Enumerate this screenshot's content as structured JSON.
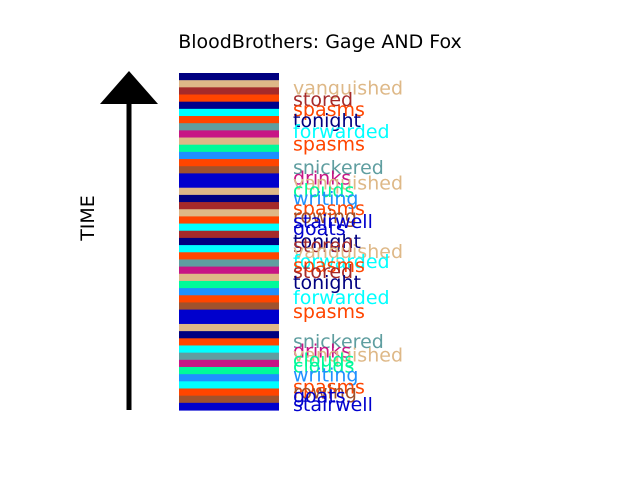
{
  "chart_data": {
    "type": "bar",
    "title": "BloodBrothers: Gage AND Fox",
    "ylabel": "TIME",
    "xlabel": "",
    "stripe_colors": [
      "#000080",
      "#deb887",
      "#a52a2a",
      "#ff4500",
      "#00008b",
      "#00ffff",
      "#ff4500",
      "#5f9ea0",
      "#c71585",
      "#deb887",
      "#00fa9a",
      "#1e90ff",
      "#ff4500",
      "#a0522d",
      "#0000cd",
      "#0000cd",
      "#deb887",
      "#000080",
      "#a52a2a",
      "#deb887",
      "#ff4500",
      "#00ffff",
      "#a52a2a",
      "#000080",
      "#00ffff",
      "#ff4500",
      "#5f9ea0",
      "#c71585",
      "#deb887",
      "#00fa9a",
      "#1e90ff",
      "#ff4500",
      "#a0522d",
      "#0000cd",
      "#0000cd",
      "#deb887",
      "#000080",
      "#ff4500",
      "#00ffff",
      "#5f9ea0",
      "#c71585",
      "#00fa9a",
      "#1e90ff",
      "#00ffff",
      "#ff4500",
      "#a0522d",
      "#0000cd"
    ],
    "labels": [
      {
        "text": "vanguished",
        "color": "#deb887",
        "y": 95.2
      },
      {
        "text": "stored",
        "color": "#a52a2a",
        "y": 91.9
      },
      {
        "text": "spasms",
        "color": "#ff4500",
        "y": 88.9
      },
      {
        "text": "tonight",
        "color": "#000080",
        "y": 85.6
      },
      {
        "text": "forwarded",
        "color": "#00ffff",
        "y": 82.3
      },
      {
        "text": "spasms",
        "color": "#ff4500",
        "y": 78.7
      },
      {
        "text": "snickered",
        "color": "#5f9ea0",
        "y": 71.6
      },
      {
        "text": "drinks",
        "color": "#c71585",
        "y": 68.6
      },
      {
        "text": "vanquished",
        "color": "#deb887",
        "y": 67.1
      },
      {
        "text": "clouds",
        "color": "#00fa9a",
        "y": 64.9
      },
      {
        "text": "writing",
        "color": "#1e90ff",
        "y": 62.5
      },
      {
        "text": "spasms",
        "color": "#ff4500",
        "y": 59.5
      },
      {
        "text": "rowing",
        "color": "#a0522d",
        "y": 57.1
      },
      {
        "text": "stairwell",
        "color": "#0000cd",
        "y": 55.7
      },
      {
        "text": "goats",
        "color": "#0000cd",
        "y": 53.6
      },
      {
        "text": "tonight",
        "color": "#000080",
        "y": 49.7
      },
      {
        "text": "stored",
        "color": "#a52a2a",
        "y": 48.5
      },
      {
        "text": "vanquished",
        "color": "#deb887",
        "y": 46.7
      },
      {
        "text": "forwarded",
        "color": "#00ffff",
        "y": 43.8
      },
      {
        "text": "spasms",
        "color": "#ff4500",
        "y": 42.6
      },
      {
        "text": "stored",
        "color": "#a52a2a",
        "y": 40.8
      },
      {
        "text": "tonight",
        "color": "#000080",
        "y": 37.6
      },
      {
        "text": "forwarded",
        "color": "#00ffff",
        "y": 33.1
      },
      {
        "text": "spasms",
        "color": "#ff4500",
        "y": 29.0
      },
      {
        "text": "snickered",
        "color": "#5f9ea0",
        "y": 20.1
      },
      {
        "text": "drinks",
        "color": "#c71585",
        "y": 17.2
      },
      {
        "text": "vanquished",
        "color": "#deb887",
        "y": 16.0
      },
      {
        "text": "clouds",
        "color": "#00fa9a",
        "y": 14.5
      },
      {
        "text": "clouds",
        "color": "#00fa9a",
        "y": 12.7
      },
      {
        "text": "writing",
        "color": "#1e90ff",
        "y": 10.1
      },
      {
        "text": "spasms",
        "color": "#ff4500",
        "y": 6.5
      },
      {
        "text": "rowing",
        "color": "#a0522d",
        "y": 5.0
      },
      {
        "text": "goats",
        "color": "#0000cd",
        "y": 3.8
      },
      {
        "text": "stairwell",
        "color": "#0000cd",
        "y": 1.4
      }
    ]
  }
}
